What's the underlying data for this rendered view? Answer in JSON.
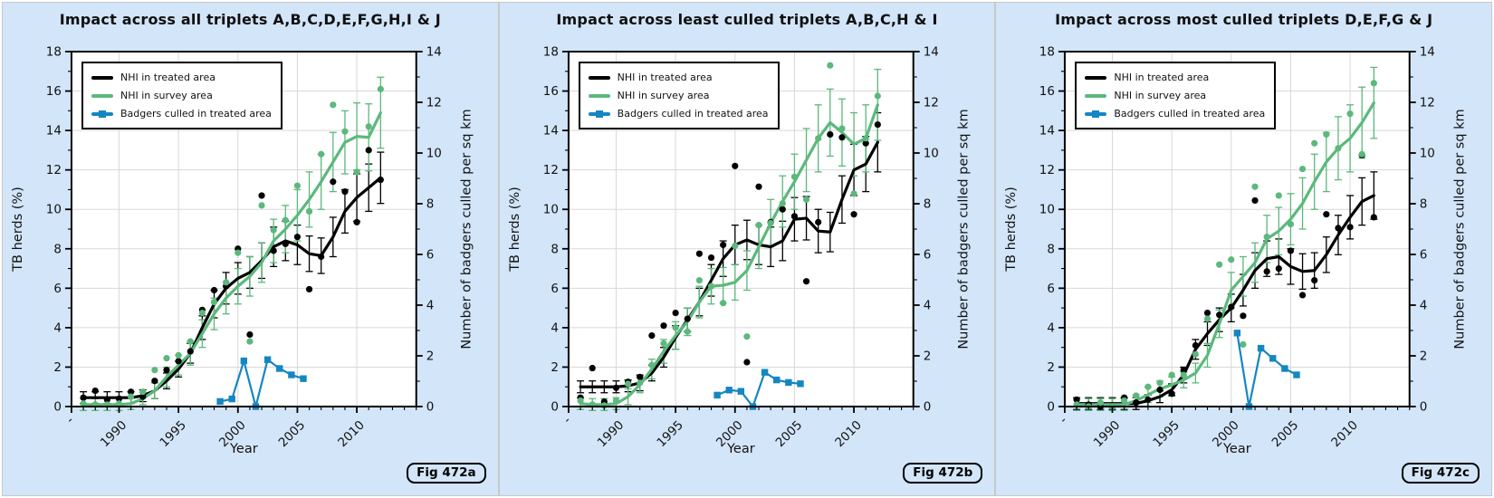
{
  "colors": {
    "treated": "#000000",
    "survey": "#5cb87c",
    "culled": "#1486c2",
    "grid": "#d8d8d8",
    "plot_background": "#ffffff",
    "page_background": "#d3e5f8",
    "divider": "#c8c8c8"
  },
  "legend": {
    "position": "upper-left",
    "items": [
      {
        "label": "NHI in treated area",
        "color_key": "treated",
        "marker": "line"
      },
      {
        "label": "NHI in survey area",
        "color_key": "survey",
        "marker": "line"
      },
      {
        "label": "Badgers culled in treated area",
        "color_key": "culled",
        "marker": "line-square"
      }
    ]
  },
  "chart_data": [
    {
      "type": "line",
      "title": "Impact across all triplets A,B,C,D,E,F,G,H,I & J",
      "fig_label": "Fig 472a",
      "xlabel": "Year",
      "ylabel_left": "TB herds (%)",
      "ylabel_right": "Number of badgers culled per sq km",
      "x_range": [
        1986,
        2015
      ],
      "ylim_left": [
        0,
        18
      ],
      "ylim_right": [
        0,
        14
      ],
      "x_tick_years": [
        1986,
        1990,
        1995,
        2000,
        2005,
        2010
      ],
      "x_tick_labels": [
        "-",
        "1990",
        "1995",
        "2000",
        "2005",
        "2010"
      ],
      "grid": true,
      "legend_position": "upper-left",
      "years": [
        1987,
        1988,
        1989,
        1990,
        1991,
        1992,
        1993,
        1994,
        1995,
        1996,
        1997,
        1998,
        1999,
        2000,
        2001,
        2002,
        2003,
        2004,
        2005,
        2006,
        2007,
        2008,
        2009,
        2010,
        2011,
        2012
      ],
      "series": [
        {
          "name": "NHI in treated area",
          "axis": "left",
          "marker": "circle",
          "color_key": "treated",
          "points": [
            0.45,
            0.8,
            0.35,
            0.4,
            0.75,
            0.5,
            1.3,
            1.85,
            2.3,
            2.8,
            4.9,
            5.9,
            6.1,
            8.0,
            3.65,
            10.7,
            7.9,
            8.25,
            8.6,
            5.95,
            7.6,
            11.4,
            10.9,
            9.35,
            13.0,
            11.5
          ],
          "trend": [
            0.45,
            0.45,
            0.45,
            0.45,
            0.45,
            0.55,
            0.8,
            1.3,
            1.9,
            2.7,
            4.0,
            5.2,
            6.0,
            6.5,
            6.8,
            7.4,
            8.1,
            8.4,
            8.2,
            7.75,
            7.65,
            8.6,
            9.9,
            10.6,
            11.1,
            11.6
          ],
          "err": [
            0.3,
            0.3,
            0.3,
            0.3,
            0.3,
            0.3,
            0.4,
            0.4,
            0.4,
            0.5,
            0.6,
            0.7,
            0.8,
            0.8,
            0.8,
            0.9,
            1.0,
            1.0,
            1.0,
            0.9,
            0.9,
            1.0,
            1.1,
            1.2,
            1.2,
            1.3
          ]
        },
        {
          "name": "NHI in survey area",
          "axis": "left",
          "marker": "circle",
          "color_key": "survey",
          "points": [
            0.15,
            0.1,
            0.1,
            0.15,
            0.5,
            0.75,
            1.85,
            2.45,
            2.6,
            3.3,
            4.75,
            5.3,
            6.3,
            7.8,
            3.3,
            10.2,
            8.95,
            9.45,
            11.2,
            9.9,
            12.8,
            15.3,
            13.95,
            11.9,
            14.2,
            16.1
          ],
          "trend": [
            0.1,
            0.1,
            0.1,
            0.1,
            0.15,
            0.4,
            0.8,
            1.5,
            2.1,
            2.7,
            3.7,
            4.7,
            5.5,
            6.1,
            6.6,
            7.3,
            8.4,
            9.0,
            9.7,
            10.5,
            11.4,
            12.4,
            13.4,
            13.7,
            13.65,
            14.9
          ],
          "err": [
            0.3,
            0.3,
            0.3,
            0.3,
            0.3,
            0.3,
            0.4,
            0.5,
            0.5,
            0.6,
            0.7,
            0.8,
            0.8,
            0.9,
            1.0,
            1.0,
            1.1,
            1.2,
            1.3,
            1.4,
            1.4,
            1.5,
            1.6,
            1.7,
            1.7,
            1.8
          ]
        },
        {
          "name": "Badgers culled in treated area",
          "axis": "right",
          "marker": "square",
          "color_key": "culled",
          "x": [
            1998.5,
            1999.5,
            2000.5,
            2001.5,
            2002.5,
            2003.5,
            2004.5,
            2005.5
          ],
          "values": [
            0.2,
            0.3,
            1.8,
            0.0,
            1.85,
            1.5,
            1.25,
            1.1
          ]
        }
      ]
    },
    {
      "type": "line",
      "title": "Impact across least culled triplets A,B,C,H & I",
      "fig_label": "Fig 472b",
      "xlabel": "Year",
      "ylabel_left": "TB herds (%)",
      "ylabel_right": "Number of badgers culled per sq km",
      "x_range": [
        1986,
        2015
      ],
      "ylim_left": [
        0,
        18
      ],
      "ylim_right": [
        0,
        14
      ],
      "x_tick_years": [
        1986,
        1990,
        1995,
        2000,
        2005,
        2010
      ],
      "x_tick_labels": [
        "-",
        "1990",
        "1995",
        "2000",
        "2005",
        "2010"
      ],
      "grid": true,
      "legend_position": "upper-left",
      "years": [
        1987,
        1988,
        1989,
        1990,
        1991,
        1992,
        1993,
        1994,
        1995,
        1996,
        1997,
        1998,
        1999,
        2000,
        2001,
        2002,
        2003,
        2004,
        2005,
        2006,
        2007,
        2008,
        2009,
        2010,
        2011,
        2012
      ],
      "series": [
        {
          "name": "NHI in treated area",
          "axis": "left",
          "marker": "circle",
          "color_key": "treated",
          "points": [
            0.45,
            1.95,
            0.25,
            0.95,
            1.25,
            1.5,
            3.6,
            4.1,
            4.75,
            4.45,
            7.75,
            7.55,
            8.2,
            12.2,
            2.25,
            11.15,
            9.35,
            10.0,
            9.65,
            6.35,
            9.35,
            13.8,
            13.65,
            9.75,
            13.35,
            14.3
          ],
          "trend": [
            1.0,
            1.0,
            1.0,
            1.0,
            1.05,
            1.2,
            1.7,
            2.5,
            3.5,
            4.4,
            5.3,
            6.4,
            7.5,
            8.2,
            8.45,
            8.2,
            8.1,
            8.4,
            9.5,
            9.55,
            8.9,
            8.85,
            10.5,
            12.0,
            12.3,
            13.4
          ],
          "err": [
            0.3,
            0.3,
            0.3,
            0.3,
            0.3,
            0.4,
            0.4,
            0.5,
            0.6,
            0.6,
            0.7,
            0.8,
            0.9,
            1.0,
            1.0,
            1.0,
            1.0,
            1.0,
            1.1,
            1.1,
            1.1,
            1.0,
            1.2,
            1.3,
            1.4,
            1.5
          ]
        },
        {
          "name": "NHI in survey area",
          "axis": "left",
          "marker": "circle",
          "color_key": "survey",
          "points": [
            0.3,
            0.1,
            0.05,
            0.3,
            1.15,
            1.2,
            2.1,
            3.2,
            4.0,
            3.8,
            6.4,
            6.1,
            5.25,
            8.15,
            3.55,
            9.2,
            9.3,
            10.3,
            11.65,
            10.5,
            13.6,
            17.3,
            14.1,
            10.8,
            13.6,
            15.75
          ],
          "trend": [
            0.15,
            0.1,
            0.1,
            0.15,
            0.5,
            1.1,
            1.9,
            2.8,
            3.6,
            4.3,
            5.3,
            6.1,
            6.15,
            6.3,
            6.9,
            8.1,
            9.3,
            10.4,
            11.4,
            12.5,
            13.6,
            14.4,
            13.9,
            13.3,
            13.6,
            15.3
          ],
          "err": [
            0.3,
            0.3,
            0.3,
            0.3,
            0.4,
            0.4,
            0.5,
            0.6,
            0.7,
            0.7,
            0.8,
            0.9,
            0.9,
            0.9,
            1.0,
            1.1,
            1.2,
            1.3,
            1.4,
            1.6,
            1.7,
            1.7,
            1.7,
            1.6,
            1.7,
            1.8
          ]
        },
        {
          "name": "Badgers culled in treated area",
          "axis": "right",
          "marker": "square",
          "color_key": "culled",
          "x": [
            1998.5,
            1999.5,
            2000.5,
            2001.5,
            2002.5,
            2003.5,
            2004.5,
            2005.5
          ],
          "values": [
            0.45,
            0.65,
            0.6,
            0.0,
            1.35,
            1.05,
            0.95,
            0.9
          ]
        }
      ]
    },
    {
      "type": "line",
      "title": "Impact across most culled triplets D,E,F,G & J",
      "fig_label": "Fig 472c",
      "xlabel": "Year",
      "ylabel_left": "TB herds (%)",
      "ylabel_right": "Number of badgers culled per sq km",
      "x_range": [
        1986,
        2015
      ],
      "ylim_left": [
        0,
        18
      ],
      "ylim_right": [
        0,
        14
      ],
      "x_tick_years": [
        1986,
        1990,
        1995,
        2000,
        2005,
        2010
      ],
      "x_tick_labels": [
        "-",
        "1990",
        "1995",
        "2000",
        "2005",
        "2010"
      ],
      "grid": true,
      "legend_position": "upper-left",
      "years": [
        1987,
        1988,
        1989,
        1990,
        1991,
        1992,
        1993,
        1994,
        1995,
        1996,
        1997,
        1998,
        1999,
        2000,
        2001,
        2002,
        2003,
        2004,
        2005,
        2006,
        2007,
        2008,
        2009,
        2010,
        2011,
        2012
      ],
      "series": [
        {
          "name": "NHI in treated area",
          "axis": "left",
          "marker": "circle",
          "color_key": "treated",
          "points": [
            0.35,
            0.1,
            0.0,
            0.0,
            0.45,
            0.2,
            0.35,
            0.85,
            0.65,
            1.85,
            3.1,
            4.75,
            4.65,
            5.05,
            4.6,
            10.45,
            6.85,
            7.0,
            7.9,
            5.65,
            6.4,
            9.75,
            9.05,
            9.1,
            12.75,
            9.6
          ],
          "trend": [
            0.15,
            0.15,
            0.15,
            0.15,
            0.15,
            0.15,
            0.3,
            0.5,
            0.85,
            1.6,
            2.9,
            3.7,
            4.4,
            5.0,
            5.9,
            6.9,
            7.5,
            7.6,
            7.1,
            6.85,
            6.9,
            7.7,
            8.7,
            9.6,
            10.4,
            10.7
          ],
          "err": [
            0.3,
            0.3,
            0.3,
            0.3,
            0.3,
            0.3,
            0.3,
            0.3,
            0.3,
            0.4,
            0.5,
            0.6,
            0.6,
            0.7,
            0.8,
            0.9,
            0.9,
            0.9,
            0.9,
            0.9,
            0.9,
            0.9,
            1.0,
            1.1,
            1.2,
            1.2
          ]
        },
        {
          "name": "NHI in survey area",
          "axis": "left",
          "marker": "circle",
          "color_key": "survey",
          "points": [
            0.1,
            0.0,
            0.2,
            0.0,
            0.3,
            0.55,
            1.0,
            1.2,
            1.6,
            1.6,
            2.65,
            4.45,
            7.2,
            7.45,
            3.15,
            11.15,
            8.6,
            10.7,
            9.25,
            12.05,
            13.35,
            13.8,
            13.1,
            14.85,
            12.8,
            16.4
          ],
          "trend": [
            0.1,
            0.1,
            0.1,
            0.1,
            0.1,
            0.3,
            0.6,
            0.9,
            1.1,
            1.35,
            1.7,
            2.6,
            4.2,
            5.9,
            6.6,
            7.3,
            8.5,
            8.9,
            9.5,
            10.3,
            11.4,
            12.4,
            13.1,
            13.6,
            14.4,
            15.4
          ],
          "err": [
            0.3,
            0.3,
            0.3,
            0.3,
            0.3,
            0.3,
            0.4,
            0.4,
            0.4,
            0.4,
            0.5,
            0.6,
            0.7,
            0.9,
            1.0,
            1.0,
            1.2,
            1.2,
            1.3,
            1.3,
            1.4,
            1.5,
            1.6,
            1.7,
            1.8,
            1.8
          ]
        },
        {
          "name": "Badgers culled in treated area",
          "axis": "right",
          "marker": "square",
          "color_key": "culled",
          "x": [
            2000.5,
            2001.5,
            2002.5,
            2003.5,
            2004.5,
            2005.5
          ],
          "values": [
            2.9,
            0.0,
            2.3,
            1.9,
            1.5,
            1.25
          ]
        }
      ]
    }
  ]
}
